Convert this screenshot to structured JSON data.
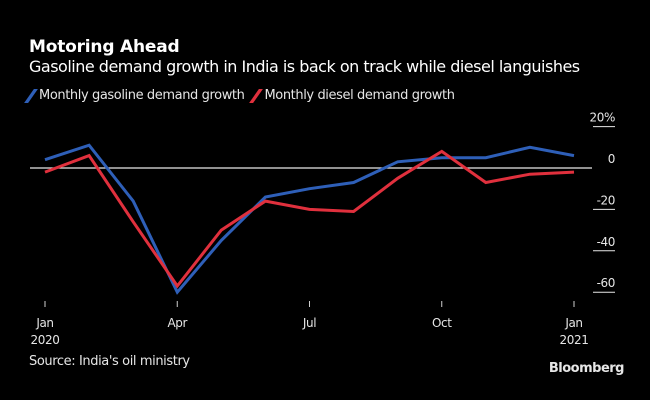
{
  "chart_data": {
    "type": "line",
    "title": "Motoring Ahead",
    "subtitle": "Gasoline demand growth in India is back on track while diesel languishes",
    "x": [
      "2020-01",
      "2020-02",
      "2020-03",
      "2020-04",
      "2020-05",
      "2020-06",
      "2020-07",
      "2020-08",
      "2020-09",
      "2020-10",
      "2020-11",
      "2020-12",
      "2021-01"
    ],
    "series": [
      {
        "name": "Monthly gasoline demand growth",
        "color": "#2e5fb8",
        "values": [
          4,
          11,
          -16,
          -60,
          -35,
          -14,
          -10,
          -7,
          3,
          5,
          5,
          10,
          6
        ]
      },
      {
        "name": "Monthly diesel demand growth",
        "color": "#e0303d",
        "values": [
          -2,
          6,
          -26,
          -57,
          -30,
          -16,
          -20,
          -21,
          -5,
          8,
          -7,
          -3,
          -2
        ]
      }
    ],
    "xticks": [
      {
        "index": 0,
        "label": "Jan",
        "sublabel": "2020"
      },
      {
        "index": 3,
        "label": "Apr",
        "sublabel": ""
      },
      {
        "index": 6,
        "label": "Jul",
        "sublabel": ""
      },
      {
        "index": 9,
        "label": "Oct",
        "sublabel": ""
      },
      {
        "index": 12,
        "label": "Jan",
        "sublabel": "2021"
      }
    ],
    "yticks": [
      {
        "value": 20,
        "label": "20%"
      },
      {
        "value": 0,
        "label": "0"
      },
      {
        "value": -20,
        "label": "-20"
      },
      {
        "value": -40,
        "label": "-40"
      },
      {
        "value": -60,
        "label": "-60"
      }
    ],
    "ylim": [
      -65,
      23
    ],
    "xlabel": "",
    "ylabel": "",
    "zero_line": true,
    "grid": false,
    "legend_position": "top-left",
    "yaxis_side": "right"
  },
  "footer": {
    "source": "Source: India's oil ministry",
    "brand": "Bloomberg"
  }
}
